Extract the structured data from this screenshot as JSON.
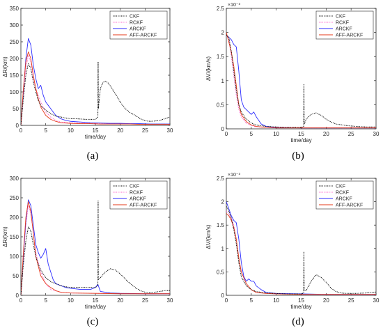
{
  "figure": {
    "panel_labels": [
      "(a)",
      "(b)",
      "(c)",
      "(d)"
    ]
  },
  "legend_entries": [
    "CKF",
    "RCKF",
    "ARCKF",
    "AFF-ARCKF"
  ],
  "colors": {
    "CKF": "#000000",
    "RCKF": "#ff66cc",
    "ARCKF": "#2b2bff",
    "AFF-ARCKF": "#e53a1a"
  },
  "chart_data": [
    {
      "id": "a",
      "type": "line",
      "xlabel": "time/day",
      "ylabel": "ΔR/(km)",
      "xlim": [
        0,
        30
      ],
      "ylim": [
        0,
        350
      ],
      "xticks": [
        0,
        5,
        10,
        15,
        20,
        25,
        30
      ],
      "yticks": [
        0,
        50,
        100,
        150,
        200,
        250,
        300,
        350
      ],
      "yexponent": "",
      "legend_position": "top-right",
      "series": [
        {
          "name": "CKF",
          "style": "dotted",
          "x": [
            0,
            0.5,
            1,
            1.5,
            2,
            2.5,
            3,
            3.5,
            4,
            5,
            6,
            7,
            8,
            9,
            10,
            11,
            12,
            13,
            14,
            15,
            15.5,
            15.55,
            15.6,
            16,
            16.5,
            17,
            17.5,
            18,
            19,
            20,
            21,
            22,
            23,
            24,
            25,
            26,
            27,
            28,
            29,
            30
          ],
          "y": [
            0,
            80,
            150,
            185,
            170,
            130,
            100,
            75,
            60,
            45,
            35,
            28,
            25,
            22,
            20,
            20,
            19,
            18,
            18,
            18,
            25,
            190,
            50,
            110,
            128,
            132,
            128,
            118,
            95,
            70,
            50,
            38,
            30,
            20,
            14,
            12,
            13,
            15,
            20,
            25
          ]
        },
        {
          "name": "RCKF",
          "style": "dotted",
          "x": [
            0,
            0.5,
            1,
            1.5,
            2,
            2.5,
            3,
            4,
            5,
            6,
            7,
            8,
            10,
            12,
            14,
            16,
            18,
            20,
            22,
            24,
            26,
            28,
            30
          ],
          "y": [
            0,
            90,
            170,
            210,
            190,
            140,
            110,
            70,
            40,
            25,
            15,
            10,
            8,
            7,
            6,
            6,
            5,
            5,
            5,
            4,
            4,
            4,
            4
          ]
        },
        {
          "name": "ARCKF",
          "style": "solid",
          "x": [
            0,
            0.5,
            1,
            1.5,
            2,
            2.5,
            3,
            3.5,
            4,
            4.5,
            5,
            5.5,
            6,
            7,
            8,
            9,
            10,
            12,
            14,
            16,
            18,
            20,
            22,
            24,
            26,
            28,
            30
          ],
          "y": [
            0,
            100,
            200,
            260,
            240,
            180,
            140,
            110,
            120,
            90,
            70,
            60,
            50,
            30,
            20,
            15,
            12,
            10,
            8,
            7,
            6,
            6,
            5,
            5,
            4,
            4,
            4
          ]
        },
        {
          "name": "AFF-ARCKF",
          "style": "solid",
          "x": [
            0,
            0.5,
            1,
            1.5,
            2,
            2.5,
            3,
            3.5,
            4,
            5,
            6,
            7,
            8,
            10,
            12,
            14,
            16,
            18,
            20,
            22,
            24,
            26,
            28,
            30
          ],
          "y": [
            0,
            110,
            190,
            220,
            200,
            150,
            110,
            80,
            55,
            30,
            18,
            12,
            8,
            6,
            5,
            5,
            4,
            4,
            4,
            4,
            3,
            3,
            3,
            3
          ]
        }
      ]
    },
    {
      "id": "b",
      "type": "line",
      "xlabel": "time/day",
      "ylabel": "ΔV/(km/s)",
      "xlim": [
        0,
        30
      ],
      "ylim": [
        0,
        2.5
      ],
      "xticks": [
        0,
        5,
        10,
        15,
        20,
        25,
        30
      ],
      "yticks": [
        0,
        0.5,
        1,
        1.5,
        2,
        2.5
      ],
      "yexponent": "×10⁻³",
      "legend_position": "top-right",
      "series": [
        {
          "name": "CKF",
          "style": "dotted",
          "x": [
            0,
            0.5,
            1,
            1.5,
            2,
            2.5,
            3,
            4,
            5,
            6,
            8,
            10,
            12,
            14,
            15,
            15.5,
            15.55,
            15.6,
            16,
            17,
            18,
            19,
            20,
            21,
            22,
            24,
            26,
            28,
            30
          ],
          "y": [
            1.95,
            1.9,
            1.6,
            1.2,
            0.8,
            0.5,
            0.35,
            0.2,
            0.12,
            0.08,
            0.05,
            0.04,
            0.03,
            0.03,
            0.03,
            0.05,
            0.92,
            0.1,
            0.2,
            0.3,
            0.33,
            0.28,
            0.2,
            0.14,
            0.1,
            0.07,
            0.05,
            0.04,
            0.04
          ]
        },
        {
          "name": "RCKF",
          "style": "dotted",
          "x": [
            0,
            0.5,
            1,
            1.5,
            2,
            2.5,
            3,
            4,
            5,
            6,
            8,
            10,
            15,
            20,
            25,
            30
          ],
          "y": [
            1.95,
            1.85,
            1.5,
            1.1,
            0.7,
            0.4,
            0.25,
            0.12,
            0.07,
            0.04,
            0.03,
            0.02,
            0.02,
            0.02,
            0.02,
            0.02
          ]
        },
        {
          "name": "ARCKF",
          "style": "solid",
          "x": [
            0,
            0.5,
            1,
            1.5,
            2,
            2.5,
            3,
            3.5,
            4,
            4.5,
            5,
            5.5,
            6,
            7,
            8,
            10,
            15,
            20,
            25,
            30
          ],
          "y": [
            1.95,
            1.9,
            1.85,
            1.75,
            1.7,
            1.2,
            0.6,
            0.45,
            0.4,
            0.35,
            0.3,
            0.35,
            0.25,
            0.1,
            0.05,
            0.03,
            0.02,
            0.02,
            0.02,
            0.02
          ]
        },
        {
          "name": "AFF-ARCKF",
          "style": "solid",
          "x": [
            0,
            0.5,
            1,
            1.5,
            2,
            2.5,
            3,
            4,
            5,
            6,
            8,
            10,
            15,
            20,
            25,
            30
          ],
          "y": [
            2.0,
            1.8,
            1.6,
            1.3,
            0.9,
            0.5,
            0.3,
            0.15,
            0.08,
            0.05,
            0.03,
            0.02,
            0.02,
            0.02,
            0.02,
            0.02
          ]
        }
      ]
    },
    {
      "id": "c",
      "type": "line",
      "xlabel": "time/day",
      "ylabel": "ΔR/(km)",
      "xlim": [
        0,
        30
      ],
      "ylim": [
        0,
        300
      ],
      "xticks": [
        0,
        5,
        10,
        15,
        20,
        25,
        30
      ],
      "yticks": [
        0,
        50,
        100,
        150,
        200,
        250,
        300
      ],
      "yexponent": "",
      "legend_position": "top-right",
      "series": [
        {
          "name": "CKF",
          "style": "dotted",
          "x": [
            0,
            0.5,
            1,
            1.5,
            2,
            2.5,
            3,
            3.5,
            4,
            5,
            6,
            7,
            8,
            9,
            10,
            11,
            12,
            13,
            14,
            15,
            15.5,
            15.55,
            15.6,
            16,
            17,
            18,
            19,
            20,
            21,
            22,
            23,
            24,
            25,
            26,
            27,
            28,
            29,
            30
          ],
          "y": [
            0,
            80,
            140,
            175,
            165,
            130,
            100,
            80,
            65,
            45,
            35,
            30,
            25,
            22,
            20,
            20,
            20,
            20,
            20,
            20,
            25,
            242,
            40,
            45,
            60,
            68,
            65,
            55,
            42,
            30,
            20,
            12,
            8,
            6,
            8,
            10,
            12,
            12
          ]
        },
        {
          "name": "RCKF",
          "style": "dotted",
          "x": [
            0,
            0.5,
            1,
            1.5,
            2,
            2.5,
            3,
            4,
            5,
            6,
            8,
            10,
            15,
            20,
            25,
            30
          ],
          "y": [
            0,
            100,
            180,
            230,
            210,
            160,
            110,
            60,
            30,
            15,
            8,
            6,
            5,
            5,
            4,
            4
          ]
        },
        {
          "name": "ARCKF",
          "style": "solid",
          "x": [
            0,
            0.5,
            1,
            1.5,
            2,
            2.5,
            3,
            3.5,
            4,
            4.5,
            5,
            5.5,
            6,
            6.5,
            7,
            8,
            9,
            10,
            12,
            14,
            15,
            15.5,
            16,
            18,
            20,
            25,
            30
          ],
          "y": [
            0,
            100,
            190,
            245,
            230,
            180,
            130,
            110,
            95,
            105,
            120,
            80,
            60,
            40,
            30,
            25,
            20,
            18,
            15,
            15,
            20,
            28,
            10,
            6,
            5,
            4,
            4
          ]
        },
        {
          "name": "AFF-ARCKF",
          "style": "solid",
          "x": [
            0,
            0.5,
            1,
            1.5,
            2,
            2.5,
            3,
            4,
            5,
            6,
            7,
            8,
            10,
            15,
            20,
            25,
            30
          ],
          "y": [
            0,
            110,
            200,
            240,
            215,
            160,
            100,
            50,
            30,
            20,
            12,
            8,
            6,
            5,
            4,
            4,
            4
          ]
        }
      ]
    },
    {
      "id": "d",
      "type": "line",
      "xlabel": "time/day",
      "ylabel": "ΔV/(km/s)",
      "xlim": [
        0,
        30
      ],
      "ylim": [
        0,
        2.5
      ],
      "xticks": [
        0,
        5,
        10,
        15,
        20,
        25,
        30
      ],
      "yticks": [
        0,
        0.5,
        1,
        1.5,
        2,
        2.5
      ],
      "yexponent": "×10⁻³",
      "legend_position": "top-right",
      "series": [
        {
          "name": "CKF",
          "style": "dotted",
          "x": [
            0,
            0.5,
            1,
            1.5,
            2,
            2.5,
            3,
            4,
            5,
            6,
            8,
            10,
            12,
            14,
            15,
            15.5,
            15.55,
            15.6,
            16,
            17,
            18,
            19,
            20,
            21,
            22,
            23,
            24,
            26,
            28,
            30
          ],
          "y": [
            1.9,
            1.8,
            1.65,
            1.4,
            1.1,
            0.7,
            0.4,
            0.2,
            0.12,
            0.08,
            0.05,
            0.04,
            0.03,
            0.03,
            0.03,
            0.05,
            0.92,
            0.1,
            0.1,
            0.3,
            0.44,
            0.38,
            0.28,
            0.15,
            0.08,
            0.05,
            0.04,
            0.04,
            0.05,
            0.07
          ]
        },
        {
          "name": "RCKF",
          "style": "dotted",
          "x": [
            0,
            0.5,
            1,
            1.5,
            2,
            2.5,
            3,
            4,
            5,
            6,
            8,
            10,
            15,
            20,
            25,
            30
          ],
          "y": [
            1.8,
            1.75,
            1.65,
            1.5,
            1.2,
            0.8,
            0.5,
            0.25,
            0.12,
            0.06,
            0.04,
            0.03,
            0.02,
            0.02,
            0.02,
            0.02
          ]
        },
        {
          "name": "ARCKF",
          "style": "solid",
          "x": [
            0,
            0.5,
            1,
            1.5,
            2,
            2.5,
            3,
            3.5,
            4,
            4.5,
            5,
            5.5,
            6,
            7,
            8,
            10,
            15,
            20,
            25,
            30
          ],
          "y": [
            2.0,
            1.85,
            1.7,
            1.6,
            1.55,
            1.2,
            0.7,
            0.4,
            0.3,
            0.35,
            0.3,
            0.3,
            0.2,
            0.12,
            0.06,
            0.04,
            0.03,
            0.02,
            0.02,
            0.02
          ]
        },
        {
          "name": "AFF-ARCKF",
          "style": "solid",
          "x": [
            0,
            0.5,
            1,
            1.5,
            2,
            2.5,
            3,
            4,
            5,
            6,
            8,
            10,
            15,
            20,
            25,
            30
          ],
          "y": [
            1.75,
            1.7,
            1.6,
            1.45,
            1.2,
            0.8,
            0.5,
            0.25,
            0.12,
            0.06,
            0.04,
            0.03,
            0.02,
            0.02,
            0.02,
            0.02
          ]
        }
      ]
    }
  ]
}
